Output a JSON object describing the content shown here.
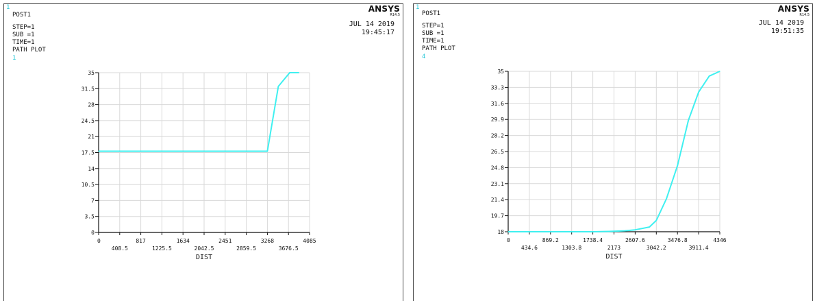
{
  "panels": [
    {
      "window_number": "1",
      "lines": [
        "POST1",
        "STEP=1",
        "SUB =1",
        "TIME=1",
        "PATH PLOT"
      ],
      "sub_number": "1",
      "logo": "ANSYS",
      "version": "R14.5",
      "date": "JUL 14 2019",
      "time": "19:45:17"
    },
    {
      "window_number": "1",
      "lines": [
        "POST1",
        "STEP=1",
        "SUB =1",
        "TIME=1",
        "PATH PLOT"
      ],
      "sub_number": "4",
      "logo": "ANSYS",
      "version": "R14.5",
      "date": "JUL 14 2019",
      "time": "19:51:35"
    }
  ],
  "colors": {
    "series": "#3ff0f0",
    "grid": "#d8d8d8",
    "axis": "#111111",
    "accent": "#28c8d8"
  },
  "chart_data": [
    {
      "type": "line",
      "xlabel": "DIST",
      "x_ticks": [
        "0",
        "408.5",
        "817",
        "1225.5",
        "1634",
        "2042.5",
        "2451",
        "2859.5",
        "3268",
        "3676.5",
        "4085"
      ],
      "y_ticks": [
        "0",
        "3.5",
        "7",
        "10.5",
        "14",
        "17.5",
        "21",
        "24.5",
        "28",
        "31.5",
        "35"
      ],
      "xlim": [
        0,
        4085
      ],
      "ylim": [
        0,
        35
      ],
      "grid": true,
      "series": [
        {
          "x": [
            0,
            3268,
            3480,
            3700,
            3880
          ],
          "y": [
            17.8,
            17.8,
            32,
            35,
            35
          ]
        }
      ]
    },
    {
      "type": "line",
      "xlabel": "DIST",
      "x_ticks": [
        "0",
        "434.6",
        "869.2",
        "1303.8",
        "1738.4",
        "2173",
        "2607.6",
        "3042.2",
        "3476.8",
        "3911.4",
        "4346"
      ],
      "y_ticks": [
        "18",
        "19.7",
        "21.4",
        "23.1",
        "24.8",
        "26.5",
        "28.2",
        "29.9",
        "31.6",
        "33.3",
        "35"
      ],
      "xlim": [
        0,
        4346
      ],
      "ylim": [
        18,
        35
      ],
      "grid": true,
      "series": [
        {
          "x": [
            0,
            1738.4,
            2173,
            2400,
            2607.6,
            2900,
            3042.2,
            3250,
            3476.8,
            3700,
            3911.4,
            4130,
            4346
          ],
          "y": [
            18,
            18,
            18.05,
            18.1,
            18.2,
            18.5,
            19.2,
            21.5,
            25.0,
            29.8,
            32.8,
            34.5,
            35
          ]
        }
      ]
    }
  ]
}
